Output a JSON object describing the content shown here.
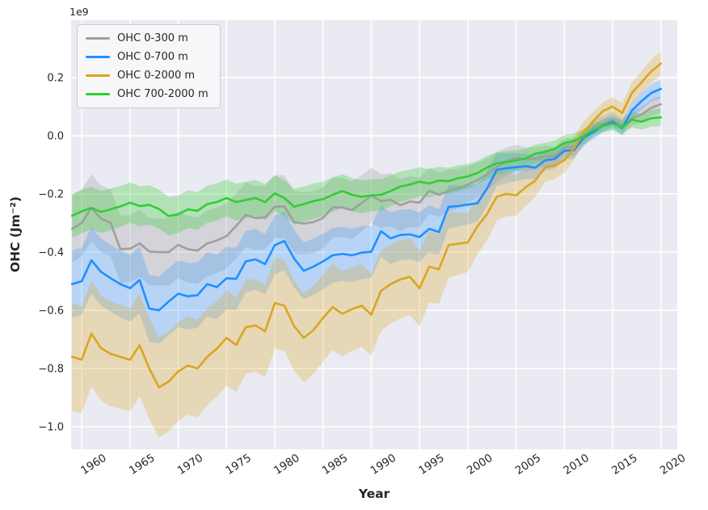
{
  "figure": {
    "offset_text": "1e9",
    "xlabel": "Year",
    "ylabel": "OHC (Jm⁻²)",
    "plot_bg_color": "#eaeaf2",
    "grid_color": "#ffffff",
    "text_color": "#262626",
    "legend_border_color": "#cccccc"
  },
  "chart_data": {
    "type": "line",
    "title": "",
    "xlabel": "Year",
    "ylabel": "OHC (Jm⁻²)",
    "y_offset_multiplier": "1e9",
    "grid": true,
    "legend_position": "upper left",
    "xlim": [
      1958.9,
      2021.7
    ],
    "ylim": [
      -1.078,
      0.397
    ],
    "xtick_values": [
      1960,
      1965,
      1970,
      1975,
      1980,
      1985,
      1990,
      1995,
      2000,
      2005,
      2010,
      2015,
      2020
    ],
    "xtick_labels": [
      "1960",
      "1965",
      "1970",
      "1975",
      "1980",
      "1985",
      "1990",
      "1995",
      "2000",
      "2005",
      "2010",
      "2015",
      "2020"
    ],
    "ytick_values": [
      0.2,
      0.0,
      -0.2,
      -0.4,
      -0.6,
      -0.8,
      -1.0
    ],
    "ytick_labels": [
      "0.2",
      "0.0",
      "−0.2",
      "−0.4",
      "−0.6",
      "−0.8",
      "−1.0"
    ],
    "x": [
      1959,
      1960,
      1961,
      1962,
      1963,
      1964,
      1965,
      1966,
      1967,
      1968,
      1969,
      1970,
      1971,
      1972,
      1973,
      1974,
      1975,
      1976,
      1977,
      1978,
      1979,
      1980,
      1981,
      1982,
      1983,
      1984,
      1985,
      1986,
      1987,
      1988,
      1989,
      1990,
      1991,
      1992,
      1993,
      1994,
      1995,
      1996,
      1997,
      1998,
      1999,
      2000,
      2001,
      2002,
      2003,
      2004,
      2005,
      2006,
      2007,
      2008,
      2009,
      2010,
      2011,
      2012,
      2013,
      2014,
      2015,
      2016,
      2017,
      2018,
      2019,
      2020
    ],
    "series": [
      {
        "name": "OHC 0-300 m",
        "color": "#9f9f9f",
        "band_alpha": 0.3,
        "values": [
          -0.32,
          -0.3,
          -0.248,
          -0.285,
          -0.3,
          -0.39,
          -0.388,
          -0.37,
          -0.398,
          -0.4,
          -0.4,
          -0.375,
          -0.39,
          -0.395,
          -0.37,
          -0.36,
          -0.345,
          -0.31,
          -0.272,
          -0.283,
          -0.281,
          -0.244,
          -0.243,
          -0.297,
          -0.302,
          -0.297,
          -0.283,
          -0.246,
          -0.247,
          -0.256,
          -0.232,
          -0.205,
          -0.225,
          -0.22,
          -0.239,
          -0.226,
          -0.23,
          -0.189,
          -0.203,
          -0.189,
          -0.181,
          -0.168,
          -0.152,
          -0.133,
          -0.108,
          -0.089,
          -0.076,
          -0.082,
          -0.078,
          -0.07,
          -0.072,
          -0.04,
          -0.038,
          -0.01,
          0.028,
          0.042,
          0.056,
          0.036,
          0.06,
          0.073,
          0.096,
          0.108
        ],
        "band_halfwidth_anchors": [
          [
            1959,
            0.115
          ],
          [
            1970,
            0.115
          ],
          [
            1985,
            0.105
          ],
          [
            1995,
            0.085
          ],
          [
            2002,
            0.055
          ],
          [
            2008,
            0.035
          ],
          [
            2014,
            0.025
          ],
          [
            2020,
            0.028
          ]
        ]
      },
      {
        "name": "OHC 0-700 m",
        "color": "#1e90ff",
        "band_alpha": 0.25,
        "values": [
          -0.51,
          -0.5,
          -0.428,
          -0.468,
          -0.49,
          -0.51,
          -0.524,
          -0.496,
          -0.594,
          -0.6,
          -0.57,
          -0.543,
          -0.552,
          -0.548,
          -0.51,
          -0.52,
          -0.49,
          -0.492,
          -0.432,
          -0.425,
          -0.441,
          -0.376,
          -0.362,
          -0.422,
          -0.464,
          -0.45,
          -0.432,
          -0.411,
          -0.406,
          -0.411,
          -0.402,
          -0.399,
          -0.328,
          -0.353,
          -0.341,
          -0.339,
          -0.348,
          -0.32,
          -0.331,
          -0.244,
          -0.242,
          -0.237,
          -0.232,
          -0.181,
          -0.117,
          -0.112,
          -0.108,
          -0.105,
          -0.11,
          -0.085,
          -0.08,
          -0.052,
          -0.05,
          -0.006,
          0.012,
          0.035,
          0.048,
          0.026,
          0.087,
          0.119,
          0.147,
          0.161
        ],
        "band_halfwidth_anchors": [
          [
            1959,
            0.115
          ],
          [
            1970,
            0.115
          ],
          [
            1985,
            0.095
          ],
          [
            1995,
            0.085
          ],
          [
            2002,
            0.06
          ],
          [
            2008,
            0.035
          ],
          [
            2014,
            0.022
          ],
          [
            2020,
            0.032
          ]
        ]
      },
      {
        "name": "OHC 0-2000 m",
        "color": "#daa520",
        "band_alpha": 0.28,
        "values": [
          -0.76,
          -0.77,
          -0.68,
          -0.73,
          -0.75,
          -0.76,
          -0.77,
          -0.72,
          -0.8,
          -0.865,
          -0.845,
          -0.81,
          -0.79,
          -0.8,
          -0.76,
          -0.732,
          -0.695,
          -0.719,
          -0.658,
          -0.652,
          -0.672,
          -0.575,
          -0.584,
          -0.654,
          -0.695,
          -0.668,
          -0.626,
          -0.589,
          -0.612,
          -0.596,
          -0.584,
          -0.615,
          -0.533,
          -0.51,
          -0.494,
          -0.485,
          -0.524,
          -0.45,
          -0.459,
          -0.376,
          -0.371,
          -0.367,
          -0.311,
          -0.269,
          -0.209,
          -0.2,
          -0.205,
          -0.177,
          -0.154,
          -0.108,
          -0.103,
          -0.084,
          -0.043,
          0.013,
          0.05,
          0.085,
          0.1,
          0.078,
          0.147,
          0.184,
          0.221,
          0.248
        ],
        "band_halfwidth_anchors": [
          [
            1959,
            0.185
          ],
          [
            1970,
            0.17
          ],
          [
            1985,
            0.15
          ],
          [
            1995,
            0.13
          ],
          [
            2002,
            0.09
          ],
          [
            2008,
            0.05
          ],
          [
            2014,
            0.03
          ],
          [
            2020,
            0.042
          ]
        ]
      },
      {
        "name": "OHC 700-2000 m",
        "color": "#32cd32",
        "band_alpha": 0.3,
        "values": [
          -0.275,
          -0.26,
          -0.248,
          -0.262,
          -0.253,
          -0.243,
          -0.23,
          -0.242,
          -0.238,
          -0.252,
          -0.276,
          -0.27,
          -0.253,
          -0.258,
          -0.235,
          -0.228,
          -0.214,
          -0.228,
          -0.221,
          -0.214,
          -0.228,
          -0.198,
          -0.214,
          -0.244,
          -0.235,
          -0.225,
          -0.218,
          -0.203,
          -0.19,
          -0.203,
          -0.21,
          -0.205,
          -0.203,
          -0.19,
          -0.175,
          -0.168,
          -0.158,
          -0.164,
          -0.154,
          -0.156,
          -0.146,
          -0.14,
          -0.128,
          -0.109,
          -0.095,
          -0.09,
          -0.085,
          -0.078,
          -0.062,
          -0.055,
          -0.045,
          -0.025,
          -0.018,
          -0.002,
          0.02,
          0.033,
          0.042,
          0.028,
          0.055,
          0.048,
          0.06,
          0.063
        ],
        "band_halfwidth_anchors": [
          [
            1959,
            0.075
          ],
          [
            1970,
            0.065
          ],
          [
            1985,
            0.06
          ],
          [
            1995,
            0.05
          ],
          [
            2002,
            0.04
          ],
          [
            2008,
            0.03
          ],
          [
            2014,
            0.022
          ],
          [
            2020,
            0.03
          ]
        ]
      }
    ]
  }
}
